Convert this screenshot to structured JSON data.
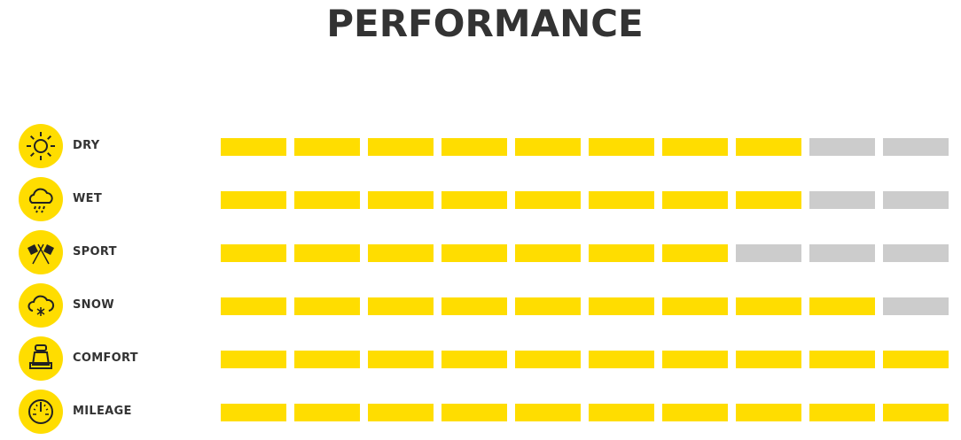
{
  "title": "PERFORMANCE",
  "colors": {
    "filled": "#FFDD00",
    "empty": "#CCCCCC",
    "icon_bg": "#FFDD00",
    "text": "#333333"
  },
  "chart_data": {
    "type": "bar",
    "title": "PERFORMANCE",
    "max": 10,
    "rows": [
      {
        "label": "DRY",
        "icon": "sun-icon",
        "value": 8
      },
      {
        "label": "WET",
        "icon": "rain-cloud-icon",
        "value": 8
      },
      {
        "label": "SPORT",
        "icon": "checkered-flags-icon",
        "value": 7
      },
      {
        "label": "SNOW",
        "icon": "snow-cloud-icon",
        "value": 9
      },
      {
        "label": "COMFORT",
        "icon": "car-seat-icon",
        "value": 10
      },
      {
        "label": "MILEAGE",
        "icon": "speedometer-icon",
        "value": 10
      }
    ]
  }
}
